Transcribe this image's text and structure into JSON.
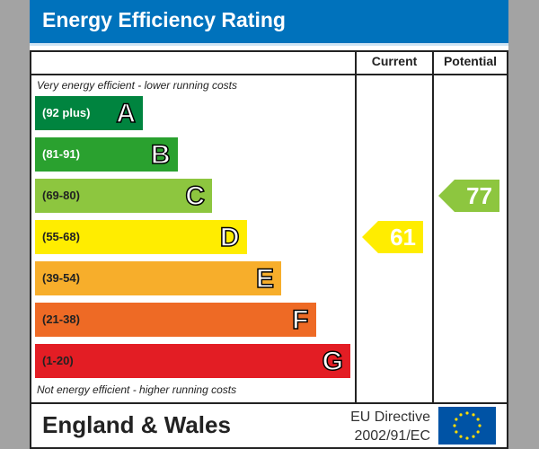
{
  "title": "Energy Efficiency Rating",
  "columns": {
    "current": "Current",
    "potential": "Potential"
  },
  "top_note": "Very energy efficient - lower running costs",
  "bottom_note": "Not energy efficient - higher running costs",
  "chart_data": {
    "type": "bar",
    "bands": [
      {
        "letter": "A",
        "range": "(92 plus)",
        "color": "#00843f",
        "text": "#fff"
      },
      {
        "letter": "B",
        "range": "(81-91)",
        "color": "#2aa12f",
        "text": "#fff"
      },
      {
        "letter": "C",
        "range": "(69-80)",
        "color": "#8dc63f",
        "text": "#222"
      },
      {
        "letter": "D",
        "range": "(55-68)",
        "color": "#ffed00",
        "text": "#222"
      },
      {
        "letter": "E",
        "range": "(39-54)",
        "color": "#f7ae2b",
        "text": "#222"
      },
      {
        "letter": "F",
        "range": "(21-38)",
        "color": "#ee6a25",
        "text": "#222"
      },
      {
        "letter": "G",
        "range": "(1-20)",
        "color": "#e31d24",
        "text": "#222"
      }
    ],
    "current": {
      "value": 61,
      "band": "D",
      "color": "#ffed00"
    },
    "potential": {
      "value": 77,
      "band": "C",
      "color": "#8dc63f"
    }
  },
  "footer": {
    "region": "England & Wales",
    "directive_line1": "EU Directive",
    "directive_line2": "2002/91/EC",
    "flag": "eu-flag-icon"
  }
}
